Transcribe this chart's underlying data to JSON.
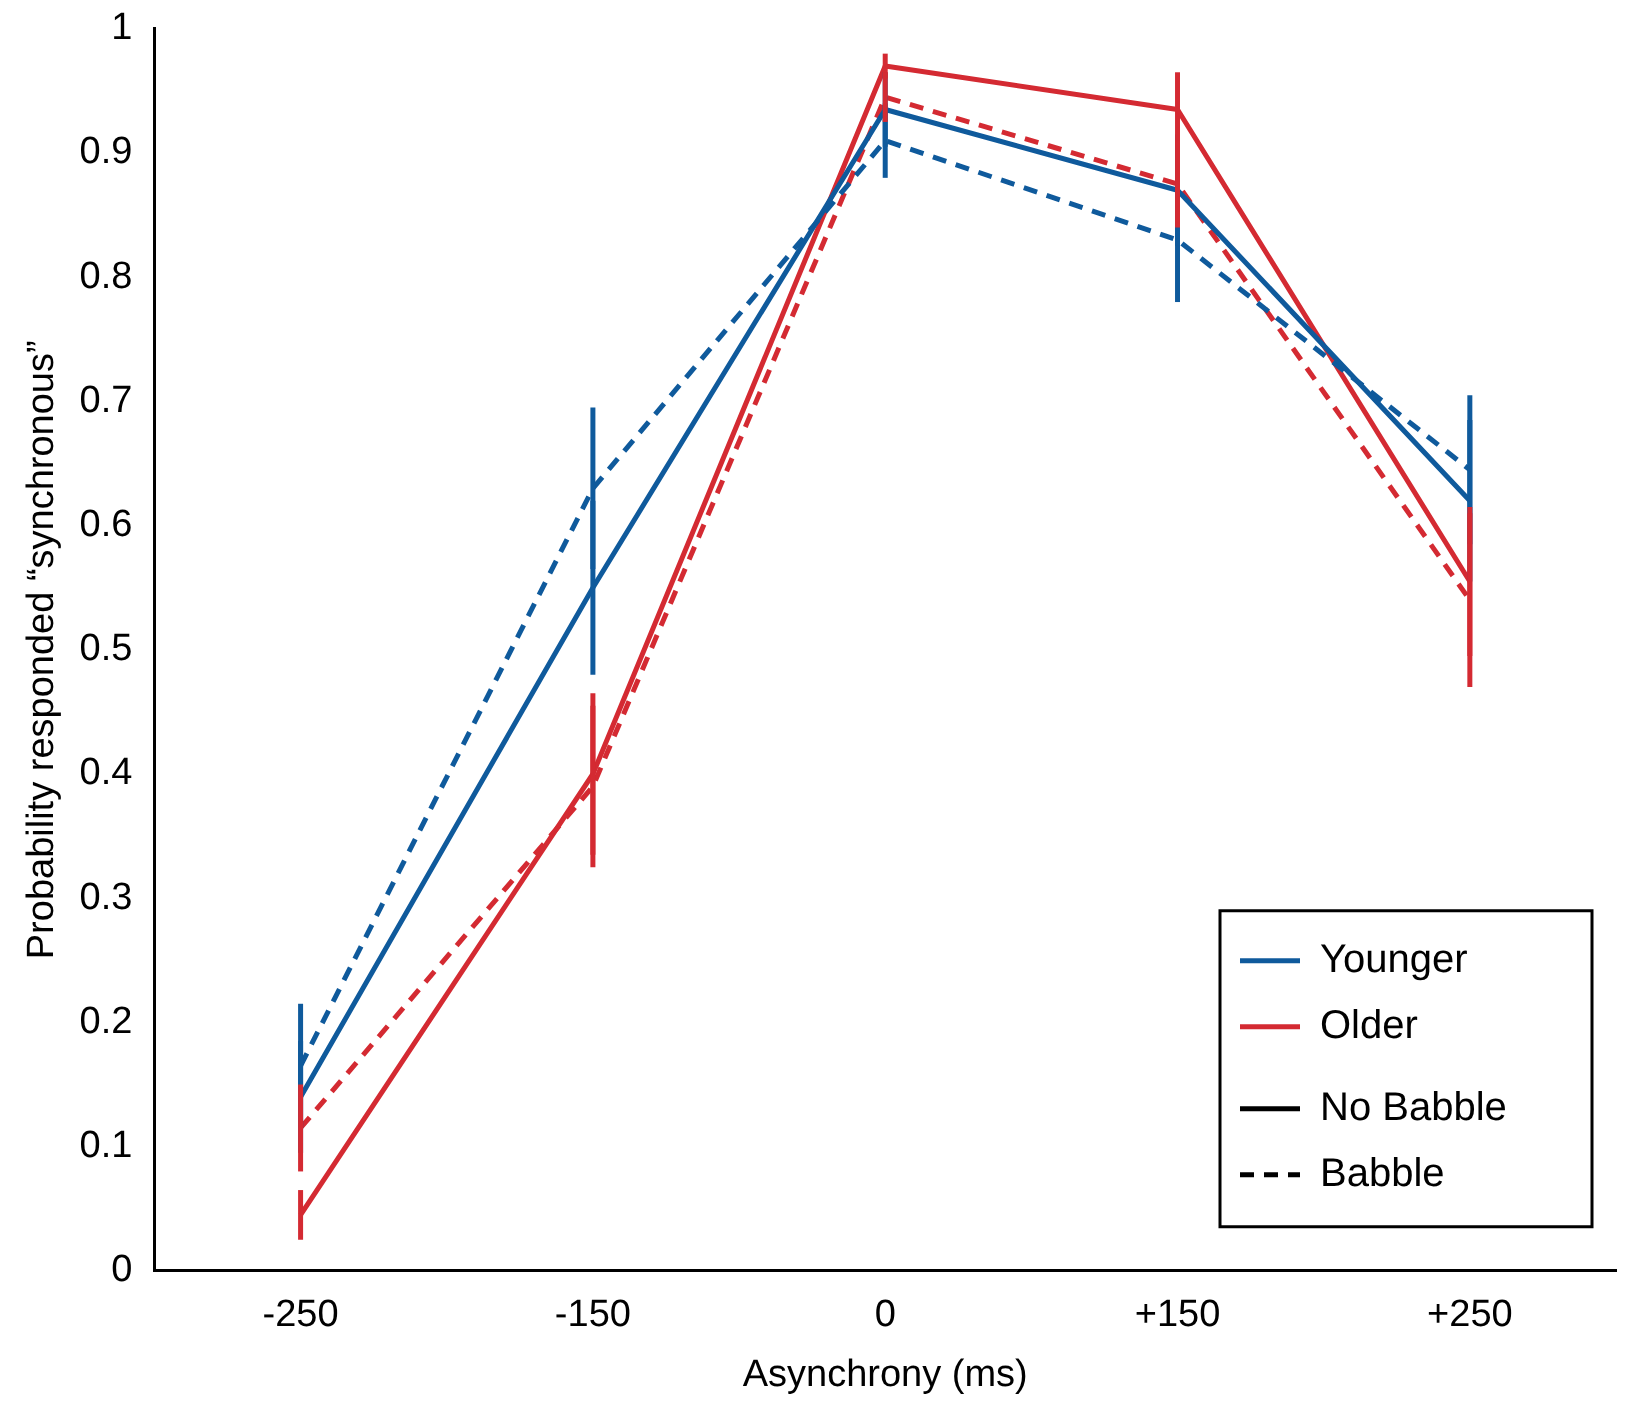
{
  "chart_data": {
    "type": "line",
    "xlabel": "Asynchrony (ms)",
    "ylabel": "Probability responded “synchronous”",
    "categories": [
      "-250",
      "-150",
      "0",
      "+150",
      "+250"
    ],
    "ylim": [
      0,
      1
    ],
    "yticks": [
      0,
      0.1,
      0.2,
      0.3,
      0.4,
      0.5,
      0.6,
      0.7,
      0.8,
      0.9,
      1
    ],
    "grid": false,
    "legend": "bottom right",
    "marker": "none",
    "annotations": [
      "No Babble",
      "Babble"
    ],
    "series": [
      {
        "name": "Younger",
        "color": "#0f5a9c",
        "line_style": "solid",
        "values": [
          0.14,
          0.55,
          0.935,
          0.87,
          0.62
        ],
        "errors": [
          0.045,
          0.07,
          0.03,
          0.045,
          0.065
        ]
      },
      {
        "color": "#0f5a9c",
        "line_style": "dashed",
        "values": [
          0.165,
          0.63,
          0.91,
          0.83,
          0.645
        ],
        "errors": [
          0.05,
          0.065,
          0.03,
          0.05,
          0.06
        ]
      },
      {
        "name": "Older",
        "color": "#d42a32",
        "line_style": "solid",
        "values": [
          0.045,
          0.4,
          0.97,
          0.935,
          0.555
        ],
        "errors": [
          0.02,
          0.065,
          0.01,
          0.03,
          0.06
        ]
      },
      {
        "color": "#d42a32",
        "line_style": "dashed",
        "values": [
          0.115,
          0.39,
          0.945,
          0.875,
          0.54
        ],
        "errors": [
          0.035,
          0.065,
          0.02,
          0.035,
          0.07
        ]
      }
    ]
  }
}
